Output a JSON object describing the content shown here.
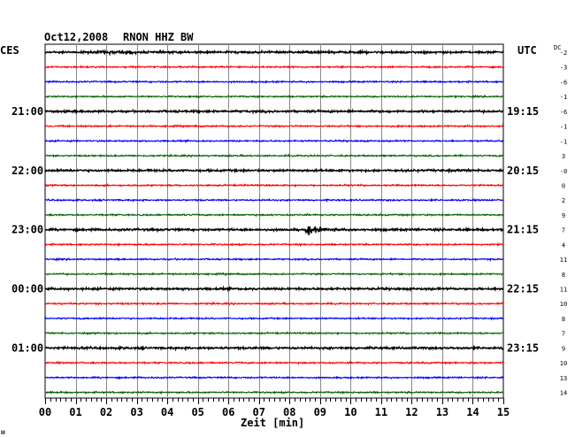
{
  "header": {
    "date": "Oct12,2008",
    "station": "RNON HHZ BW",
    "left_timezone": "CES",
    "right_timezone": "UTC",
    "dc_label": "DC",
    "footer_mark": "ᴍ"
  },
  "chart_data": {
    "type": "line",
    "title": "Oct12,2008   RNON HHZ BW",
    "xlabel": "Zeit [min]",
    "ylabel": "",
    "xlim": [
      0,
      15
    ],
    "x_ticks": [
      "00",
      "01",
      "02",
      "03",
      "04",
      "05",
      "06",
      "07",
      "08",
      "09",
      "10",
      "11",
      "12",
      "13",
      "14",
      "15"
    ],
    "grid": true,
    "trace_colors": [
      "#000000",
      "#ff0000",
      "#0000ff",
      "#006400"
    ],
    "left_hour_labels": [
      {
        "row": 4,
        "text": "21:00"
      },
      {
        "row": 8,
        "text": "22:00"
      },
      {
        "row": 12,
        "text": "23:00"
      },
      {
        "row": 16,
        "text": "00:00"
      },
      {
        "row": 20,
        "text": "01:00"
      }
    ],
    "right_hour_labels": [
      {
        "row": 4,
        "text": "19:15"
      },
      {
        "row": 8,
        "text": "20:15"
      },
      {
        "row": 12,
        "text": "21:15"
      },
      {
        "row": 16,
        "text": "22:15"
      },
      {
        "row": 20,
        "text": "23:15"
      }
    ],
    "dc_offsets": [
      "-2",
      "-3",
      "-6",
      "-1",
      "-6",
      "-1",
      "-1",
      "3",
      "-0",
      "0",
      "2",
      "9",
      "7",
      "4",
      "11",
      "8",
      "11",
      "10",
      "8",
      "7",
      "9",
      "10",
      "13",
      "14"
    ],
    "traces": 24,
    "events": [
      {
        "row": 12,
        "minute_start": 8.5,
        "minute_end": 9.9,
        "description": "seismic event"
      }
    ]
  }
}
